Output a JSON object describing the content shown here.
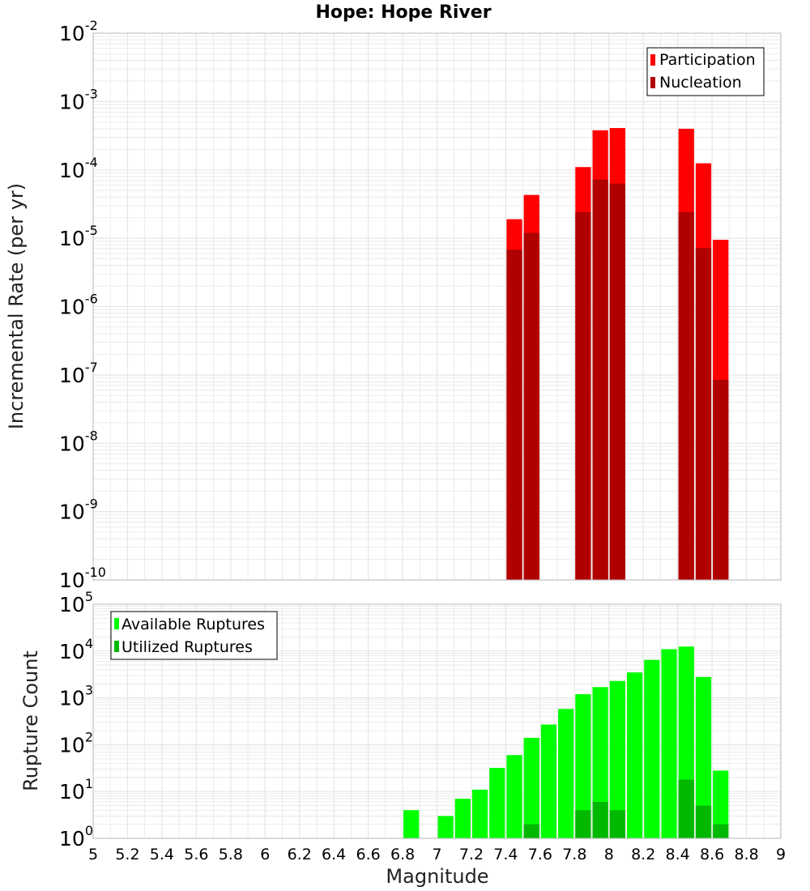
{
  "title": "Hope: Hope River",
  "colors": {
    "participation": "#ff0000",
    "nucleation": "#b00000",
    "available": "#00ff00",
    "utilized": "#00b800",
    "grid": "#e6e6e6",
    "frame": "#bbbbbb"
  },
  "chart_data": [
    {
      "type": "bar",
      "ylabel": "Incremental Rate (per yr)",
      "xlabel": "",
      "yscale": "log",
      "ylim": [
        1e-10,
        0.01
      ],
      "xlim": [
        5,
        9
      ],
      "grid": true,
      "legend": "top-right",
      "y_tick_bases": [
        "10",
        "10",
        "10",
        "10",
        "10",
        "10",
        "10",
        "10",
        "10"
      ],
      "y_tick_exponents": [
        "-10",
        "-9",
        "-8",
        "-7",
        "-6",
        "-5",
        "-4",
        "-3",
        "-2"
      ],
      "y_tick_values": [
        1e-10,
        1e-09,
        1e-08,
        1e-07,
        1e-06,
        1e-05,
        0.0001,
        0.001,
        0.01
      ],
      "series": [
        {
          "name": "Participation",
          "x": [
            7.45,
            7.55,
            7.85,
            7.95,
            8.05,
            8.45,
            8.55,
            8.65
          ],
          "values": [
            1.9e-05,
            4.3e-05,
            0.00011,
            0.00038,
            0.00041,
            0.0004,
            0.000125,
            9.5e-06
          ]
        },
        {
          "name": "Nucleation",
          "x": [
            7.45,
            7.55,
            7.85,
            7.95,
            8.05,
            8.45,
            8.55,
            8.65
          ],
          "values": [
            6.8e-06,
            1.2e-05,
            2.4e-05,
            7.2e-05,
            6.3e-05,
            2.4e-05,
            7.2e-06,
            8.5e-08
          ]
        }
      ]
    },
    {
      "type": "bar",
      "ylabel": "Rupture Count",
      "xlabel": "Magnitude",
      "yscale": "log",
      "ylim": [
        1,
        100000.0
      ],
      "xlim": [
        5,
        9
      ],
      "grid": true,
      "legend": "top-left",
      "x_ticks": [
        "5",
        "5.2",
        "5.4",
        "5.6",
        "5.8",
        "6",
        "6.2",
        "6.4",
        "6.6",
        "6.8",
        "7",
        "7.2",
        "7.4",
        "7.6",
        "7.8",
        "8",
        "8.2",
        "8.4",
        "8.6",
        "8.8",
        "9"
      ],
      "y_tick_bases": [
        "10",
        "10",
        "10",
        "10",
        "10",
        "10"
      ],
      "y_tick_exponents": [
        "0",
        "1",
        "2",
        "3",
        "4",
        "5"
      ],
      "y_tick_values": [
        1,
        10,
        100,
        1000,
        10000,
        100000
      ],
      "series": [
        {
          "name": "Available Ruptures",
          "x": [
            6.85,
            6.95,
            7.05,
            7.15,
            7.25,
            7.35,
            7.45,
            7.55,
            7.65,
            7.75,
            7.85,
            7.95,
            8.05,
            8.15,
            8.25,
            8.35,
            8.45,
            8.55,
            8.65
          ],
          "values": [
            4,
            1,
            3,
            7,
            11,
            32,
            60,
            140,
            270,
            580,
            1200,
            1700,
            2300,
            3500,
            6500,
            11000,
            12500,
            2800,
            28
          ]
        },
        {
          "name": "Utilized Ruptures",
          "x": [
            7.45,
            7.55,
            7.85,
            7.95,
            8.05,
            8.45,
            8.55,
            8.65
          ],
          "values": [
            1,
            2,
            4,
            6,
            4,
            18,
            5,
            2
          ]
        }
      ]
    }
  ]
}
